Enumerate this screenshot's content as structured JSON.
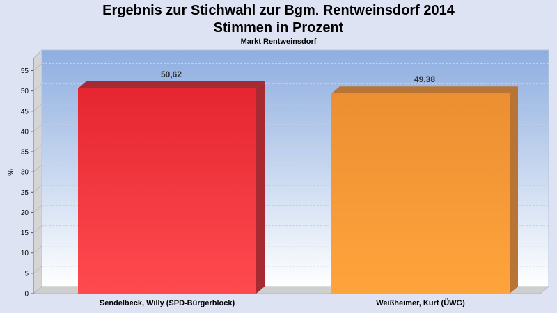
{
  "title_line1": "Ergebnis zur Stichwahl zur Bgm. Rentweinsdorf 2014",
  "title_line2": "Stimmen in Prozent",
  "subtitle": "Markt Rentweinsdorf",
  "chart_data": {
    "type": "bar",
    "categories": [
      "Sendelbeck, Willy (SPD-Bürgerblock)",
      "Weißheimer, Kurt (ÜWG)"
    ],
    "values": [
      50.62,
      49.38
    ],
    "value_labels": [
      "50,62",
      "49,38"
    ],
    "colors": [
      "#ee2a33",
      "#f2962f"
    ],
    "ylabel": "%",
    "ylim": [
      0,
      55
    ],
    "yticks": [
      0,
      5,
      10,
      15,
      20,
      25,
      30,
      35,
      40,
      45,
      50,
      55
    ],
    "grid": true,
    "legend": "none"
  }
}
